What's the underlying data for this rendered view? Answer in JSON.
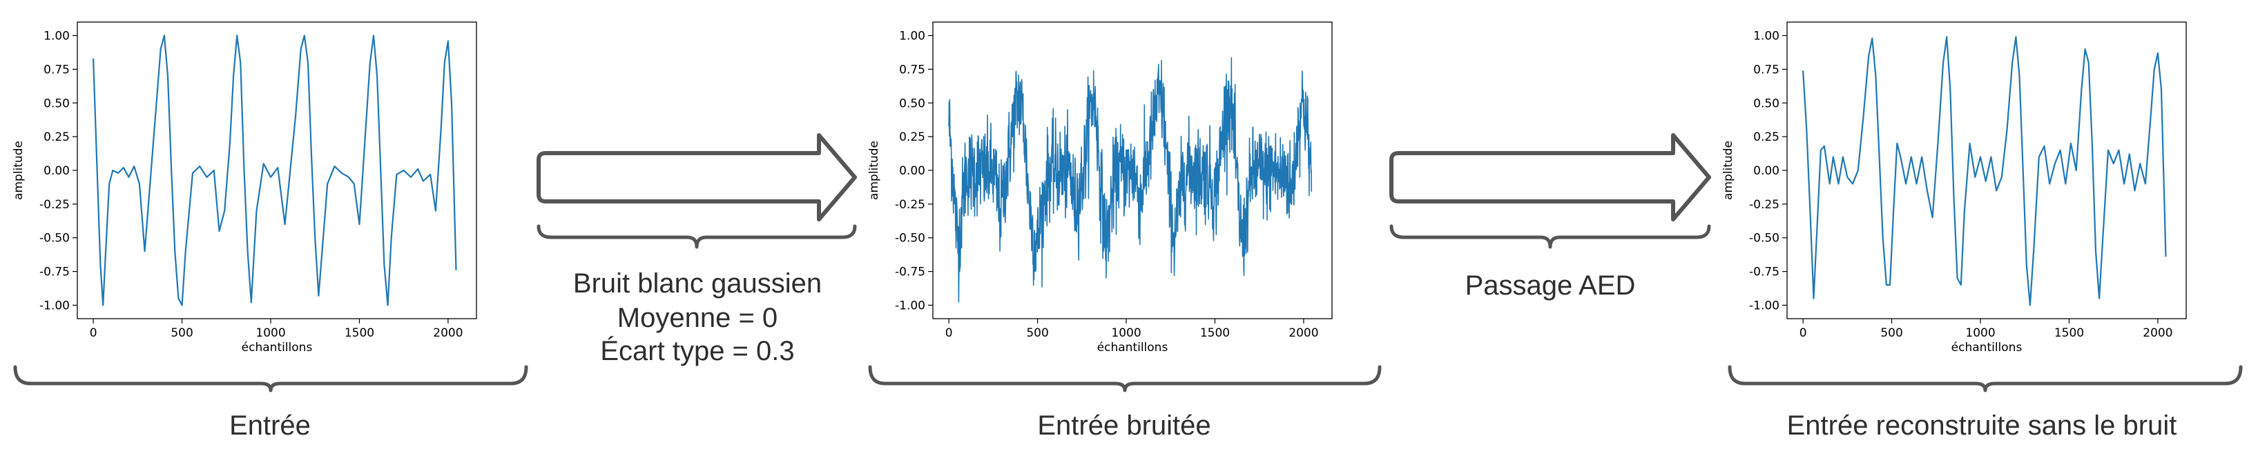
{
  "colors": {
    "line": "#1f77b4",
    "shape_stroke": "#555555",
    "caption_text": "#2e2e2e"
  },
  "arrow_1": {
    "caption_lines": [
      "Bruit blanc gaussien",
      "Moyenne = 0",
      "Écart type = 0.3"
    ]
  },
  "arrow_2": {
    "caption_lines": [
      "Passage AED"
    ]
  },
  "chart_data": [
    {
      "type": "line",
      "caption": "Entrée",
      "xlabel": "échantillons",
      "ylabel": "amplitude",
      "xlim": [
        -90,
        2160
      ],
      "ylim": [
        -1.1,
        1.1
      ],
      "xticks": [
        0,
        500,
        1000,
        1500,
        2000
      ],
      "yticks": [
        "1.00",
        "0.75",
        "0.50",
        "0.25",
        "0.00",
        "-0.25",
        "-0.50",
        "-0.75",
        "-1.00"
      ],
      "series": [
        {
          "x": [
            0,
            20,
            40,
            55,
            70,
            90,
            110,
            140,
            170,
            200,
            230,
            260,
            290,
            320,
            350,
            380,
            400,
            420,
            440,
            460,
            480,
            500,
            520,
            560,
            600,
            640,
            680,
            710,
            740,
            770,
            790,
            810,
            830,
            850,
            870,
            890,
            920,
            960,
            1000,
            1040,
            1080,
            1110,
            1140,
            1170,
            1190,
            1210,
            1230,
            1250,
            1270,
            1290,
            1320,
            1360,
            1400,
            1440,
            1470,
            1500,
            1530,
            1560,
            1580,
            1600,
            1620,
            1640,
            1660,
            1680,
            1710,
            1750,
            1790,
            1830,
            1860,
            1900,
            1930,
            1960,
            1980,
            2000,
            2020,
            2045
          ],
          "y": [
            0.83,
            0.05,
            -0.7,
            -1.0,
            -0.6,
            -0.1,
            0.0,
            -0.02,
            0.02,
            -0.05,
            0.03,
            -0.1,
            -0.6,
            -0.1,
            0.4,
            0.9,
            1.0,
            0.7,
            0.0,
            -0.6,
            -0.95,
            -1.0,
            -0.6,
            -0.02,
            0.03,
            -0.05,
            0.0,
            -0.45,
            -0.3,
            0.2,
            0.7,
            1.0,
            0.8,
            0.0,
            -0.6,
            -0.98,
            -0.3,
            0.05,
            -0.05,
            0.02,
            -0.4,
            0.0,
            0.4,
            0.9,
            1.0,
            0.8,
            0.1,
            -0.5,
            -0.93,
            -0.6,
            -0.1,
            0.03,
            -0.02,
            -0.05,
            -0.1,
            -0.4,
            0.2,
            0.8,
            1.0,
            0.7,
            0.0,
            -0.7,
            -1.0,
            -0.5,
            -0.03,
            0.0,
            -0.05,
            0.01,
            -0.08,
            -0.03,
            -0.3,
            0.3,
            0.8,
            0.96,
            0.5,
            -0.74
          ]
        }
      ]
    },
    {
      "type": "line",
      "caption": "Entrée bruitée",
      "xlabel": "échantillons",
      "ylabel": "amplitude",
      "xlim": [
        -90,
        2160
      ],
      "ylim": [
        -1.1,
        1.1
      ],
      "xticks": [
        0,
        500,
        1000,
        1500,
        2000
      ],
      "yticks": [
        "1.00",
        "0.75",
        "0.50",
        "0.25",
        "0.00",
        "-0.25",
        "-0.50",
        "-0.75",
        "-1.00"
      ],
      "series": [
        {
          "x": [
            0,
            20,
            40,
            55,
            70,
            90,
            110,
            140,
            170,
            200,
            230,
            260,
            290,
            320,
            350,
            380,
            400,
            420,
            440,
            460,
            480,
            500,
            520,
            560,
            600,
            640,
            680,
            710,
            740,
            770,
            790,
            810,
            830,
            850,
            870,
            890,
            920,
            960,
            1000,
            1040,
            1080,
            1110,
            1140,
            1170,
            1190,
            1210,
            1230,
            1250,
            1270,
            1290,
            1320,
            1360,
            1400,
            1440,
            1470,
            1500,
            1530,
            1560,
            1580,
            1600,
            1620,
            1640,
            1660,
            1680,
            1710,
            1750,
            1790,
            1830,
            1860,
            1900,
            1930,
            1960,
            1980,
            2000,
            2020,
            2045
          ],
          "y": [
            0.68,
            0.05,
            -0.7,
            -1.0,
            -0.6,
            -0.1,
            0.0,
            -0.02,
            0.02,
            -0.05,
            0.03,
            -0.1,
            -0.6,
            -0.1,
            0.4,
            0.9,
            1.0,
            0.7,
            0.0,
            -0.6,
            -0.95,
            -1.0,
            -0.6,
            -0.02,
            0.03,
            -0.05,
            0.0,
            -0.45,
            -0.3,
            0.2,
            0.7,
            1.0,
            0.8,
            0.0,
            -0.6,
            -0.98,
            -0.3,
            0.05,
            -0.05,
            0.02,
            -0.4,
            0.0,
            0.4,
            0.9,
            1.0,
            0.8,
            0.1,
            -0.5,
            -0.93,
            -0.6,
            -0.1,
            0.03,
            -0.02,
            -0.05,
            -0.1,
            -0.4,
            0.2,
            0.8,
            1.0,
            0.7,
            0.0,
            -0.7,
            -1.0,
            -0.5,
            -0.03,
            0.0,
            -0.05,
            0.01,
            -0.08,
            -0.03,
            -0.3,
            0.3,
            0.8,
            0.96,
            0.5,
            -0.12
          ]
        }
      ],
      "noise": {
        "distribution": "gaussian",
        "mean": 0,
        "std": 0.3
      }
    },
    {
      "type": "line",
      "caption": "Entrée reconstruite sans le bruit",
      "xlabel": "échantillons",
      "ylabel": "amplitude",
      "xlim": [
        -90,
        2160
      ],
      "ylim": [
        -1.1,
        1.1
      ],
      "xticks": [
        0,
        500,
        1000,
        1500,
        2000
      ],
      "yticks": [
        "1.00",
        "0.75",
        "0.50",
        "0.25",
        "0.00",
        "-0.25",
        "-0.50",
        "-0.75",
        "-1.00"
      ],
      "series": [
        {
          "x": [
            0,
            20,
            40,
            60,
            80,
            100,
            120,
            150,
            170,
            200,
            225,
            250,
            280,
            310,
            340,
            370,
            390,
            410,
            430,
            450,
            470,
            490,
            510,
            530,
            550,
            580,
            610,
            640,
            670,
            700,
            730,
            760,
            790,
            810,
            830,
            850,
            870,
            890,
            910,
            940,
            970,
            1000,
            1030,
            1060,
            1090,
            1120,
            1150,
            1180,
            1200,
            1220,
            1240,
            1260,
            1280,
            1300,
            1330,
            1360,
            1390,
            1420,
            1450,
            1480,
            1510,
            1540,
            1570,
            1590,
            1610,
            1630,
            1650,
            1670,
            1690,
            1720,
            1750,
            1780,
            1810,
            1840,
            1870,
            1900,
            1930,
            1960,
            1980,
            2000,
            2020,
            2045
          ],
          "y": [
            0.74,
            0.3,
            -0.3,
            -0.95,
            -0.4,
            0.15,
            0.18,
            -0.1,
            0.1,
            -0.1,
            0.1,
            -0.05,
            -0.1,
            0.0,
            0.4,
            0.85,
            0.98,
            0.7,
            0.1,
            -0.5,
            -0.85,
            -0.85,
            -0.3,
            0.2,
            0.1,
            -0.1,
            0.1,
            -0.1,
            0.1,
            -0.15,
            -0.35,
            0.2,
            0.8,
            0.99,
            0.6,
            -0.2,
            -0.8,
            -0.85,
            -0.3,
            0.2,
            -0.05,
            0.1,
            -0.08,
            0.1,
            -0.15,
            -0.05,
            0.3,
            0.8,
            0.99,
            0.7,
            0.0,
            -0.7,
            -1.0,
            -0.6,
            0.1,
            0.18,
            -0.1,
            0.05,
            0.15,
            -0.1,
            0.2,
            0.0,
            0.6,
            0.9,
            0.8,
            0.2,
            -0.6,
            -0.95,
            -0.5,
            0.15,
            0.05,
            0.15,
            -0.1,
            0.12,
            -0.15,
            0.05,
            -0.1,
            0.4,
            0.75,
            0.87,
            0.6,
            -0.64
          ]
        }
      ]
    }
  ]
}
